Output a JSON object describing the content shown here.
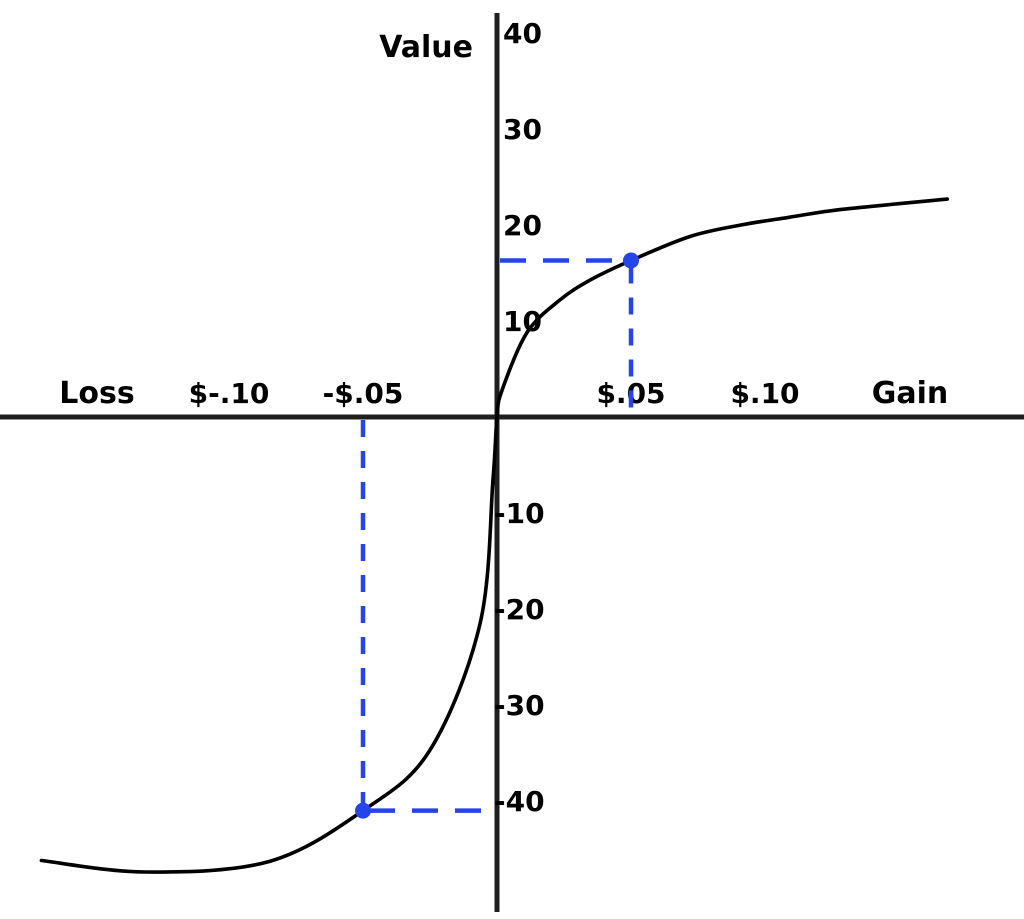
{
  "chart_data": {
    "type": "line",
    "description": "S-shaped value function curve through the origin (steep for losses, shallower for gains) with two blue dashed reference points",
    "ylabel": "Value",
    "xlabel_left": "Loss",
    "xlabel_right": "Gain",
    "xlim": [
      -0.185,
      0.196
    ],
    "ylim": [
      -52,
      43
    ],
    "grid": false,
    "y_ticks": [
      {
        "label": "40",
        "value": 40
      },
      {
        "label": "30",
        "value": 30
      },
      {
        "label": "20",
        "value": 20
      },
      {
        "label": "10",
        "value": 10
      },
      {
        "label": "-10",
        "value": -10
      },
      {
        "label": "-20",
        "value": -20
      },
      {
        "label": "-30",
        "value": -30
      },
      {
        "label": "-40",
        "value": -40
      }
    ],
    "x_ticks": [
      {
        "label": "$-.10",
        "value": -0.1
      },
      {
        "label": "-$.05",
        "value": -0.05
      },
      {
        "label": "$.05",
        "value": 0.05
      },
      {
        "label": "$.10",
        "value": 0.1
      }
    ],
    "curve_points": [
      {
        "x": -0.17,
        "value": -46.2
      },
      {
        "x": -0.131,
        "value": -47.4
      },
      {
        "x": -0.085,
        "value": -46.3
      },
      {
        "x": -0.05,
        "value": -41.0
      },
      {
        "x": -0.025,
        "value": -34.7
      },
      {
        "x": -0.0063,
        "value": -21.5
      },
      {
        "x": -0.0015,
        "value": -6.5
      },
      {
        "x": 0.0,
        "value": 0.0
      },
      {
        "x": 0.0019,
        "value": 2.8
      },
      {
        "x": 0.0112,
        "value": 8.8
      },
      {
        "x": 0.0235,
        "value": 12.2
      },
      {
        "x": 0.035,
        "value": 14.3
      },
      {
        "x": 0.05,
        "value": 16.3
      },
      {
        "x": 0.072,
        "value": 18.8
      },
      {
        "x": 0.091,
        "value": 20.0
      },
      {
        "x": 0.109,
        "value": 20.8
      },
      {
        "x": 0.128,
        "value": 21.6
      },
      {
        "x": 0.168,
        "value": 22.7
      }
    ],
    "reference_points": [
      {
        "name": "gain-point",
        "x": 0.05,
        "value": 16.3,
        "tick_label": "$.05"
      },
      {
        "name": "loss-point",
        "x": -0.05,
        "value": -41.0,
        "tick_label": "-$.05"
      }
    ],
    "colors": {
      "curve": "#000000",
      "axis": "#1f1f1f",
      "reference_blue": "#2545e8",
      "background": "#ffffff",
      "text": "#000000"
    }
  }
}
